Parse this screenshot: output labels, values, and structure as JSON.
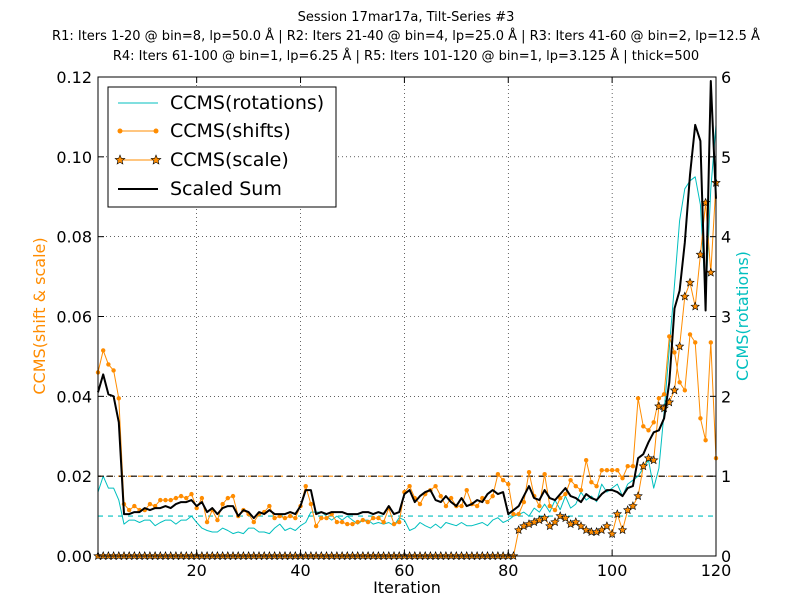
{
  "chart_data": {
    "type": "line",
    "title": {
      "line1": "Session 17mar17a, Tilt-Series #3",
      "line2": "R1: Iters 1-20 @ bin=8, lp=50.0 Å | R2: Iters 21-40 @ bin=4, lp=25.0 Å | R3: Iters 41-60 @ bin=2, lp=12.5 Å",
      "line3": "R4: Iters 61-100 @ bin=1, lp=6.25 Å | R5: Iters 101-120 @ bin=1, lp=3.125 Å | thick=500"
    },
    "xlabel": "Iteration",
    "ylabel_left": "CCMS(shift & scale)",
    "ylabel_right": "CCMS(rotations)",
    "xlim": [
      1,
      120
    ],
    "ylim_left": [
      0,
      0.12
    ],
    "ylim_right": [
      0,
      6
    ],
    "x_ticks": [
      "20",
      "40",
      "60",
      "80",
      "100",
      "120"
    ],
    "x_tick_values": [
      20,
      40,
      60,
      80,
      100,
      120
    ],
    "y_left_ticks": [
      "0.00",
      "0.02",
      "0.04",
      "0.06",
      "0.08",
      "0.10",
      "0.12"
    ],
    "y_left_tick_values": [
      0,
      0.02,
      0.04,
      0.06,
      0.08,
      0.1,
      0.12
    ],
    "y_right_ticks": [
      "0",
      "1",
      "2",
      "3",
      "4",
      "5",
      "6"
    ],
    "y_right_tick_values": [
      0,
      1,
      2,
      3,
      4,
      5,
      6
    ],
    "grid": true,
    "legend_position": "top-left",
    "reference_lines": [
      {
        "axis": "left",
        "value": 0.02,
        "color": "#ff8c00",
        "style": "dashed"
      },
      {
        "axis": "left",
        "value": 0.02,
        "color": "#000000",
        "style": "dashed"
      },
      {
        "axis": "right",
        "value": 0.5,
        "color": "#00bfbf",
        "style": "dashed"
      }
    ],
    "series": [
      {
        "name": "CCMS(rotations)",
        "legend_label": "CCMS(rotations)",
        "axis": "right",
        "color": "#00bfbf",
        "marker": "none",
        "x": [
          1,
          2,
          3,
          4,
          5,
          6,
          7,
          8,
          9,
          10,
          11,
          12,
          13,
          14,
          15,
          16,
          17,
          18,
          19,
          20,
          21,
          22,
          23,
          24,
          25,
          26,
          27,
          28,
          29,
          30,
          31,
          32,
          33,
          34,
          35,
          36,
          37,
          38,
          39,
          40,
          41,
          42,
          43,
          44,
          45,
          46,
          47,
          48,
          49,
          50,
          51,
          52,
          53,
          54,
          55,
          56,
          57,
          58,
          59,
          60,
          61,
          62,
          63,
          64,
          65,
          66,
          67,
          68,
          69,
          70,
          71,
          72,
          73,
          74,
          75,
          76,
          77,
          78,
          79,
          80,
          81,
          82,
          83,
          84,
          85,
          86,
          87,
          88,
          89,
          90,
          91,
          92,
          93,
          94,
          95,
          96,
          97,
          98,
          99,
          100,
          101,
          102,
          103,
          104,
          105,
          106,
          107,
          108,
          109,
          110,
          111,
          112,
          113,
          114,
          115,
          116,
          117,
          118,
          119,
          120
        ],
        "values": [
          0.8,
          1.0,
          0.85,
          0.85,
          0.7,
          0.4,
          0.45,
          0.45,
          0.42,
          0.45,
          0.45,
          0.38,
          0.42,
          0.45,
          0.45,
          0.4,
          0.45,
          0.45,
          0.5,
          0.42,
          0.35,
          0.32,
          0.3,
          0.3,
          0.35,
          0.32,
          0.28,
          0.3,
          0.28,
          0.35,
          0.35,
          0.3,
          0.3,
          0.28,
          0.35,
          0.4,
          0.32,
          0.35,
          0.32,
          0.38,
          0.42,
          0.55,
          0.55,
          0.55,
          0.5,
          0.45,
          0.5,
          0.45,
          0.5,
          0.45,
          0.4,
          0.45,
          0.45,
          0.4,
          0.42,
          0.4,
          0.42,
          0.38,
          0.48,
          0.45,
          0.32,
          0.35,
          0.42,
          0.38,
          0.35,
          0.4,
          0.35,
          0.42,
          0.4,
          0.38,
          0.42,
          0.38,
          0.38,
          0.4,
          0.42,
          0.38,
          0.45,
          0.48,
          0.42,
          0.45,
          0.5,
          0.52,
          0.55,
          0.5,
          0.6,
          0.55,
          0.65,
          0.55,
          0.7,
          0.58,
          0.75,
          0.6,
          0.65,
          0.8,
          0.7,
          0.75,
          0.68,
          0.9,
          0.8,
          0.85,
          0.9,
          0.75,
          0.9,
          0.95,
          1.0,
          1.1,
          1.2,
          0.85,
          1.1,
          1.8,
          2.6,
          3.4,
          4.2,
          4.6,
          4.7,
          4.75,
          4.4,
          3.2,
          4.6,
          5.4
        ]
      },
      {
        "name": "CCMS(shifts)",
        "legend_label": "CCMS(shifts)",
        "axis": "left",
        "color": "#ff8c00",
        "marker": "dot",
        "x": [
          1,
          2,
          3,
          4,
          5,
          6,
          7,
          8,
          9,
          10,
          11,
          12,
          13,
          14,
          15,
          16,
          17,
          18,
          19,
          20,
          21,
          22,
          23,
          24,
          25,
          26,
          27,
          28,
          29,
          30,
          31,
          32,
          33,
          34,
          35,
          36,
          37,
          38,
          39,
          40,
          41,
          42,
          43,
          44,
          45,
          46,
          47,
          48,
          49,
          50,
          51,
          52,
          53,
          54,
          55,
          56,
          57,
          58,
          59,
          60,
          61,
          62,
          63,
          64,
          65,
          66,
          67,
          68,
          69,
          70,
          71,
          72,
          73,
          74,
          75,
          76,
          77,
          78,
          79,
          80,
          81,
          82,
          83,
          84,
          85,
          86,
          87,
          88,
          89,
          90,
          91,
          92,
          93,
          94,
          95,
          96,
          97,
          98,
          99,
          100,
          101,
          102,
          103,
          104,
          105,
          106,
          107,
          108,
          109,
          110,
          111,
          112,
          113,
          114,
          115,
          116,
          117,
          118,
          119,
          120
        ],
        "values": [
          0.046,
          0.0515,
          0.048,
          0.0465,
          0.0395,
          0.013,
          0.0115,
          0.0125,
          0.0115,
          0.0115,
          0.013,
          0.0125,
          0.014,
          0.014,
          0.014,
          0.0145,
          0.015,
          0.0145,
          0.0155,
          0.012,
          0.0145,
          0.0085,
          0.0115,
          0.009,
          0.013,
          0.0145,
          0.015,
          0.01,
          0.0115,
          0.0105,
          0.0085,
          0.0105,
          0.011,
          0.0125,
          0.0095,
          0.01,
          0.0095,
          0.01,
          0.0095,
          0.0125,
          0.0175,
          0.013,
          0.0075,
          0.0095,
          0.0095,
          0.0105,
          0.0085,
          0.0085,
          0.008,
          0.008,
          0.0085,
          0.009,
          0.0085,
          0.0095,
          0.0095,
          0.0085,
          0.012,
          0.008,
          0.0085,
          0.016,
          0.0175,
          0.0145,
          0.013,
          0.0155,
          0.0165,
          0.0175,
          0.015,
          0.0125,
          0.0145,
          0.0125,
          0.0125,
          0.0165,
          0.013,
          0.0125,
          0.0145,
          0.0135,
          0.015,
          0.0205,
          0.019,
          0.018,
          0.0105,
          0.0105,
          0.0135,
          0.021,
          0.015,
          0.0125,
          0.0205,
          0.0125,
          0.0115,
          0.0145,
          0.0155,
          0.019,
          0.0175,
          0.0165,
          0.024,
          0.0185,
          0.0175,
          0.0215,
          0.0215,
          0.0215,
          0.0215,
          0.0195,
          0.0225,
          0.0225,
          0.0395,
          0.0325,
          0.0315,
          0.0335,
          0.0395,
          0.0405,
          0.055,
          0.051,
          0.0435,
          0.0415,
          0.0555,
          0.0535,
          0.0345,
          0.029,
          0.0535,
          0.0245
        ]
      },
      {
        "name": "CCMS(scale)",
        "legend_label": "CCMS(scale)",
        "axis": "left",
        "color": "#ff8c00",
        "marker": "star",
        "x": [
          1,
          2,
          3,
          4,
          5,
          6,
          7,
          8,
          9,
          10,
          11,
          12,
          13,
          14,
          15,
          16,
          17,
          18,
          19,
          20,
          21,
          22,
          23,
          24,
          25,
          26,
          27,
          28,
          29,
          30,
          31,
          32,
          33,
          34,
          35,
          36,
          37,
          38,
          39,
          40,
          41,
          42,
          43,
          44,
          45,
          46,
          47,
          48,
          49,
          50,
          51,
          52,
          53,
          54,
          55,
          56,
          57,
          58,
          59,
          60,
          61,
          62,
          63,
          64,
          65,
          66,
          67,
          68,
          69,
          70,
          71,
          72,
          73,
          74,
          75,
          76,
          77,
          78,
          79,
          80,
          81,
          82,
          83,
          84,
          85,
          86,
          87,
          88,
          89,
          90,
          91,
          92,
          93,
          94,
          95,
          96,
          97,
          98,
          99,
          100,
          101,
          102,
          103,
          104,
          105,
          106,
          107,
          108,
          109,
          110,
          111,
          112,
          113,
          114,
          115,
          116,
          117,
          118,
          119,
          120
        ],
        "values": [
          0,
          0,
          0,
          0,
          0,
          0,
          0,
          0,
          0,
          0,
          0,
          0,
          0,
          0,
          0,
          0,
          0,
          0,
          0,
          0,
          0,
          0,
          0,
          0,
          0,
          0,
          0,
          0,
          0,
          0,
          0,
          0,
          0,
          0,
          0,
          0,
          0,
          0,
          0,
          0,
          0,
          0,
          0,
          0,
          0,
          0,
          0,
          0,
          0,
          0,
          0,
          0,
          0,
          0,
          0,
          0,
          0,
          0,
          0,
          0,
          0,
          0,
          0,
          0,
          0,
          0,
          0,
          0,
          0,
          0,
          0,
          0,
          0,
          0,
          0,
          0,
          0,
          0,
          0,
          0,
          0,
          0.0065,
          0.0075,
          0.008,
          0.0085,
          0.009,
          0.0095,
          0.0075,
          0.0085,
          0.01,
          0.0095,
          0.008,
          0.0085,
          0.0075,
          0.0065,
          0.006,
          0.006,
          0.0065,
          0.0075,
          0.0055,
          0.0105,
          0.0065,
          0.0115,
          0.0125,
          0.015,
          0.0225,
          0.0245,
          0.024,
          0.0375,
          0.037,
          0.0385,
          0.0415,
          0.0525,
          0.065,
          0.0685,
          0.0625,
          0.0755,
          0.0885,
          0.071,
          0.0935
        ]
      },
      {
        "name": "Scaled Sum",
        "legend_label": "Scaled Sum",
        "axis": "left",
        "color": "#000000",
        "marker": "none",
        "x": [
          1,
          2,
          3,
          4,
          5,
          6,
          7,
          8,
          9,
          10,
          11,
          12,
          13,
          14,
          15,
          16,
          17,
          18,
          19,
          20,
          21,
          22,
          23,
          24,
          25,
          26,
          27,
          28,
          29,
          30,
          31,
          32,
          33,
          34,
          35,
          36,
          37,
          38,
          39,
          40,
          41,
          42,
          43,
          44,
          45,
          46,
          47,
          48,
          49,
          50,
          51,
          52,
          53,
          54,
          55,
          56,
          57,
          58,
          59,
          60,
          61,
          62,
          63,
          64,
          65,
          66,
          67,
          68,
          69,
          70,
          71,
          72,
          73,
          74,
          75,
          76,
          77,
          78,
          79,
          80,
          81,
          82,
          83,
          84,
          85,
          86,
          87,
          88,
          89,
          90,
          91,
          92,
          93,
          94,
          95,
          96,
          97,
          98,
          99,
          100,
          101,
          102,
          103,
          104,
          105,
          106,
          107,
          108,
          109,
          110,
          111,
          112,
          113,
          114,
          115,
          116,
          117,
          118,
          119,
          120
        ],
        "values": [
          0.041,
          0.0455,
          0.0405,
          0.04,
          0.0335,
          0.0105,
          0.0105,
          0.011,
          0.011,
          0.012,
          0.0115,
          0.012,
          0.012,
          0.0125,
          0.012,
          0.013,
          0.0135,
          0.0135,
          0.014,
          0.0125,
          0.0135,
          0.011,
          0.012,
          0.0105,
          0.012,
          0.0125,
          0.0125,
          0.01,
          0.0115,
          0.011,
          0.0095,
          0.011,
          0.0105,
          0.0115,
          0.0105,
          0.0105,
          0.0105,
          0.011,
          0.0105,
          0.0125,
          0.0165,
          0.0165,
          0.0105,
          0.011,
          0.0105,
          0.011,
          0.011,
          0.011,
          0.0105,
          0.0105,
          0.0105,
          0.011,
          0.011,
          0.0105,
          0.011,
          0.0105,
          0.0125,
          0.0105,
          0.011,
          0.0155,
          0.0165,
          0.0135,
          0.015,
          0.016,
          0.0165,
          0.014,
          0.0135,
          0.015,
          0.0135,
          0.0125,
          0.0145,
          0.0125,
          0.013,
          0.014,
          0.0135,
          0.0155,
          0.0165,
          0.0155,
          0.016,
          0.0105,
          0.0115,
          0.0125,
          0.015,
          0.0175,
          0.0145,
          0.014,
          0.0165,
          0.0145,
          0.014,
          0.0155,
          0.017,
          0.015,
          0.0145,
          0.0135,
          0.0155,
          0.0145,
          0.014,
          0.0155,
          0.0165,
          0.0165,
          0.016,
          0.015,
          0.017,
          0.0175,
          0.0245,
          0.0255,
          0.0285,
          0.031,
          0.0315,
          0.0345,
          0.0435,
          0.062,
          0.0665,
          0.0785,
          0.0955,
          0.108,
          0.104,
          0.0615,
          0.119,
          0.0895
        ]
      }
    ]
  }
}
